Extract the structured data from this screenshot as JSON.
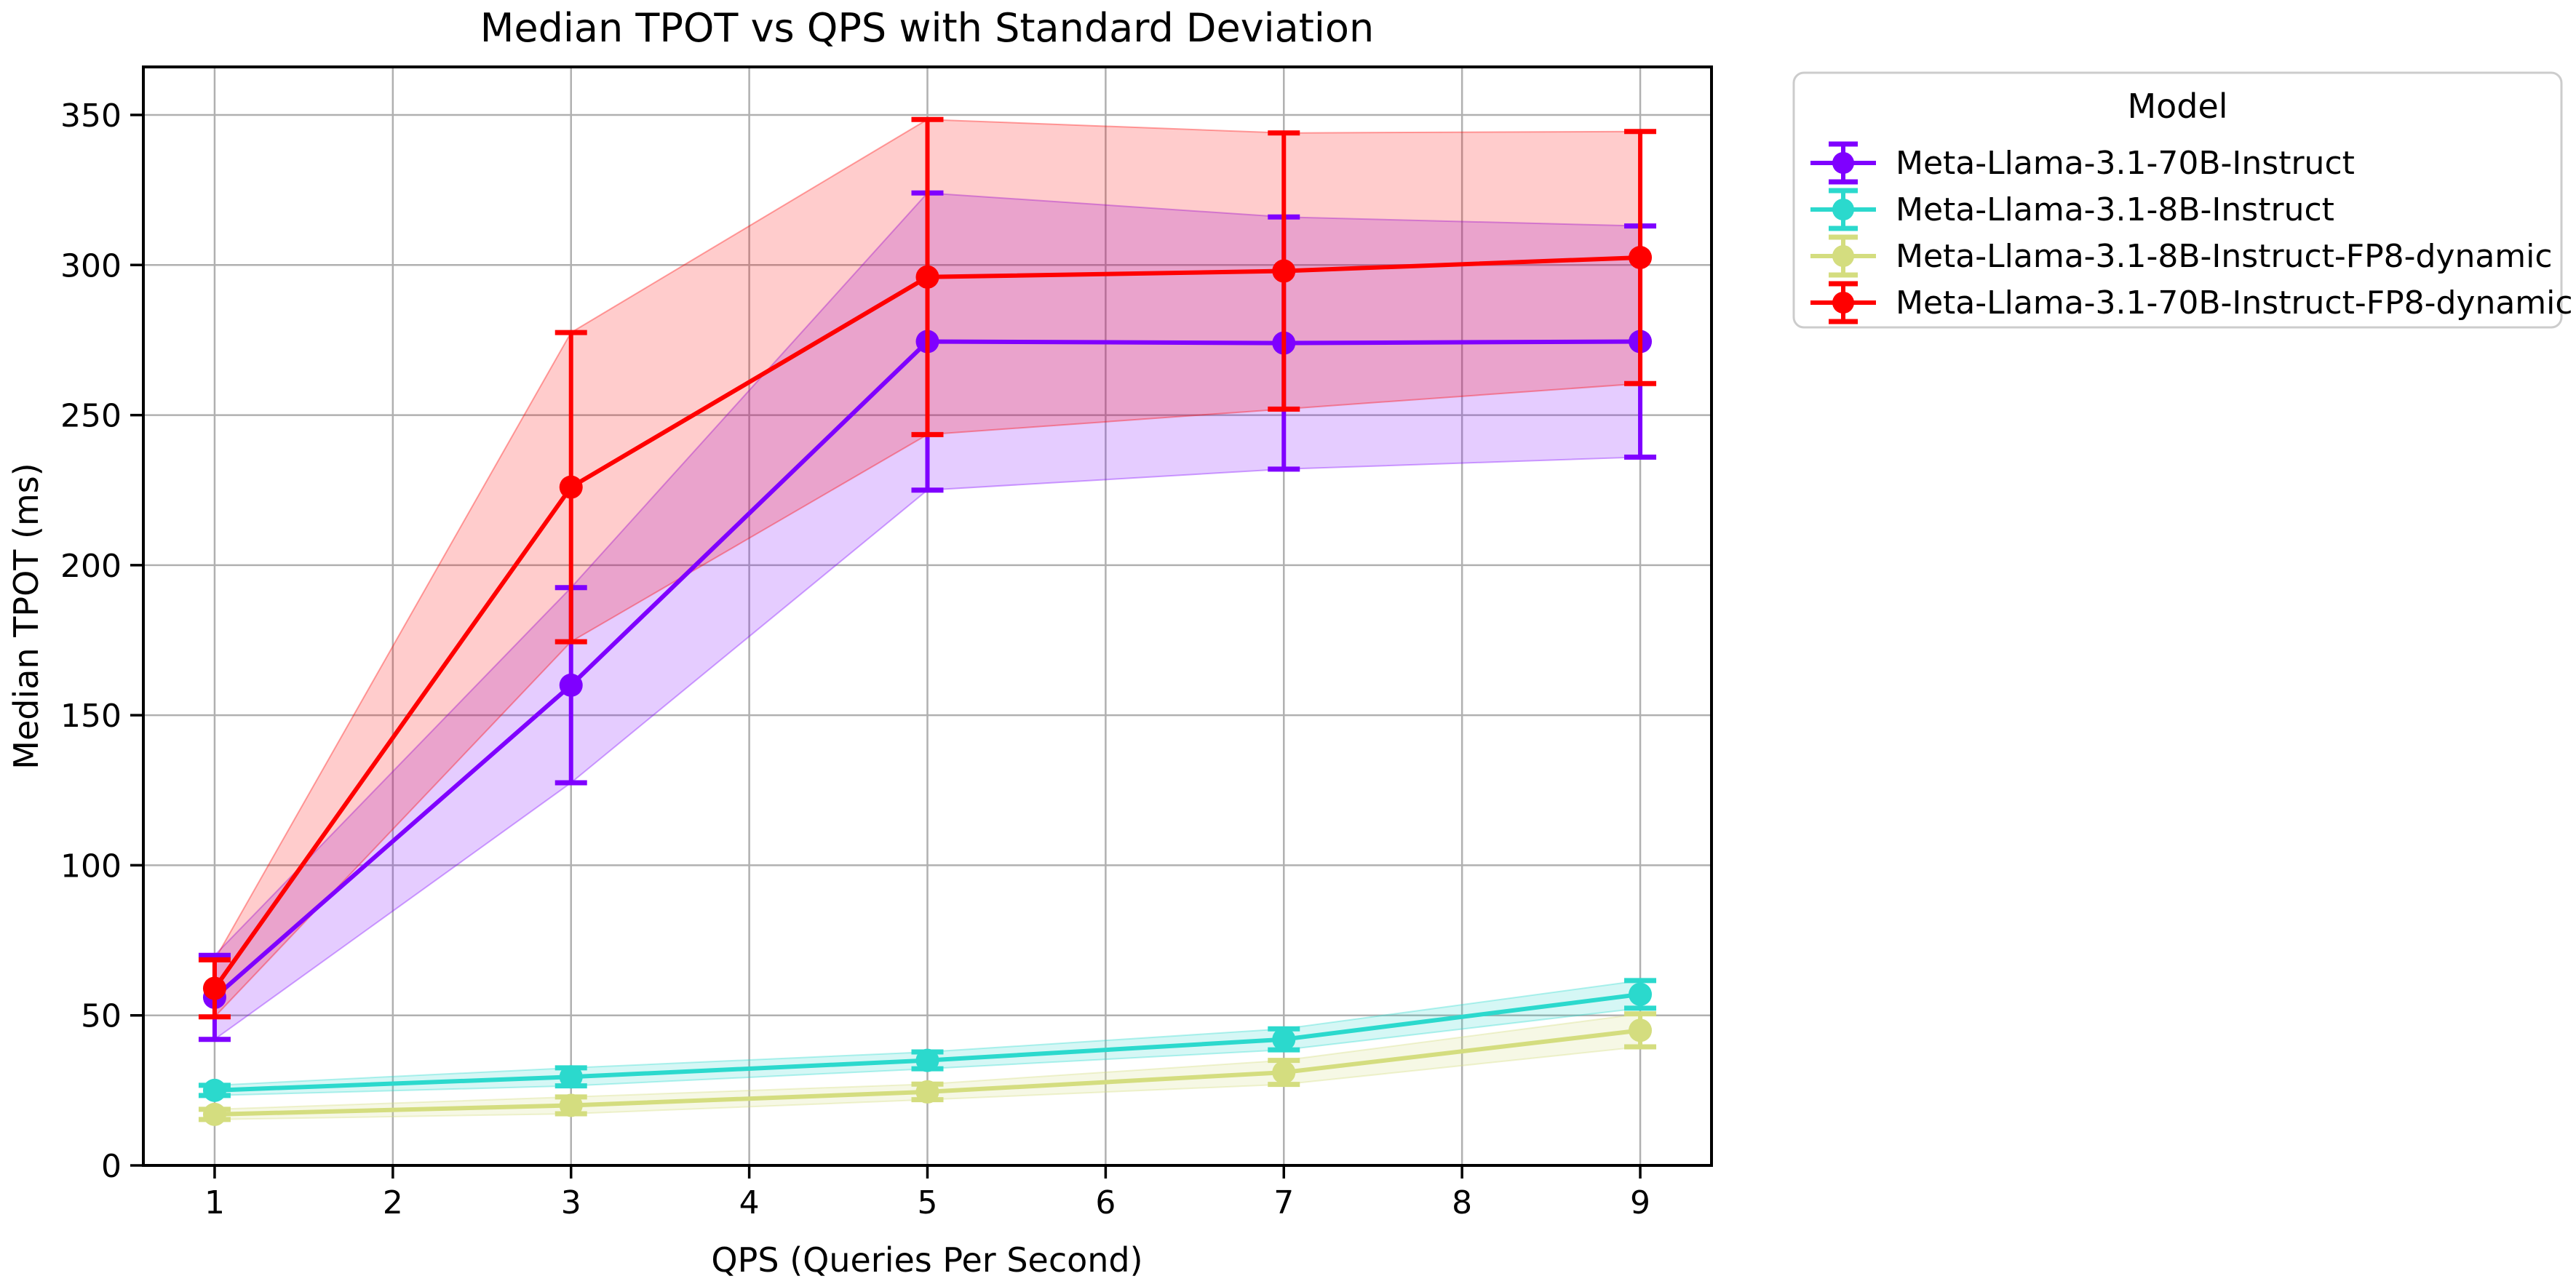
{
  "figure": {
    "background": "#ffffff"
  },
  "chart_data": {
    "type": "line",
    "title": "Median TPOT vs QPS with Standard Deviation",
    "xlabel": "QPS (Queries Per Second)",
    "ylabel": "Median TPOT (ms)",
    "grid": true,
    "legend": {
      "title": "Model",
      "position": "outside-upper-right"
    },
    "x": [
      1,
      3,
      5,
      7,
      9
    ],
    "xticks": [
      1,
      2,
      3,
      4,
      5,
      6,
      7,
      8,
      9
    ],
    "yticks": [
      0,
      50,
      100,
      150,
      200,
      250,
      300,
      350
    ],
    "xlim": [
      0.6,
      9.4
    ],
    "ylim": [
      0,
      366
    ],
    "colors": {
      "grid": "#b0b0b0",
      "spine": "#000000",
      "tick_text": "#000000",
      "legend_border": "#cccccc",
      "legend_bg": "#ffffff"
    },
    "band_alpha": 0.2,
    "series": [
      {
        "name": "Meta-Llama-3.1-70B-Instruct",
        "color": "#7F00FF",
        "mean": [
          56,
          160,
          274.5,
          274,
          274.5
        ],
        "std": [
          14,
          32.5,
          49.5,
          42,
          38.5
        ]
      },
      {
        "name": "Meta-Llama-3.1-8B-Instruct",
        "color": "#2BD9CD",
        "mean": [
          25,
          29.5,
          35,
          42,
          57
        ],
        "std": [
          1.7,
          3,
          2.8,
          3.5,
          4.6
        ]
      },
      {
        "name": "Meta-Llama-3.1-8B-Instruct-FP8-dynamic",
        "color": "#D4DD7F",
        "mean": [
          17,
          20,
          24.5,
          31,
          45
        ],
        "std": [
          1.7,
          2.8,
          2.6,
          4,
          5.5
        ]
      },
      {
        "name": "Meta-Llama-3.1-70B-Instruct-FP8-dynamic",
        "color": "#FF0000",
        "mean": [
          59,
          226,
          296,
          298,
          302.5
        ],
        "std": [
          9.5,
          51.5,
          52.5,
          46,
          42
        ]
      }
    ]
  }
}
